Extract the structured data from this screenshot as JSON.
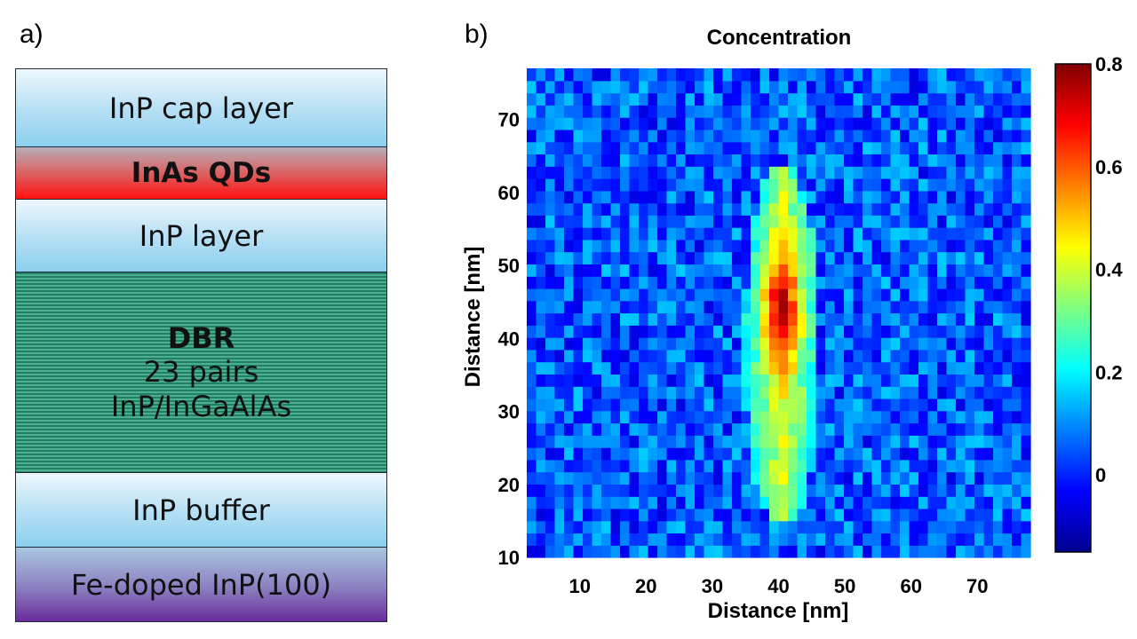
{
  "panel_a": {
    "label": "a)",
    "layers": [
      {
        "lines": [
          "InP cap layer"
        ]
      },
      {
        "lines": [
          "InAs QDs"
        ]
      },
      {
        "lines": [
          "InP layer"
        ]
      },
      {
        "title": "DBR",
        "lines": [
          "23 pairs",
          "InP/InGaAlAs"
        ]
      },
      {
        "lines": [
          "InP buffer"
        ]
      },
      {
        "lines": [
          "Fe-doped InP(100)"
        ]
      }
    ]
  },
  "panel_b": {
    "label": "b)"
  },
  "chart_data": {
    "type": "heatmap",
    "title": "Concentration",
    "xlabel": "Distance [nm]",
    "ylabel": "Distance [nm]",
    "xlim": [
      2,
      78
    ],
    "ylim": [
      10,
      77
    ],
    "xticks": [
      10,
      20,
      30,
      40,
      50,
      60,
      70
    ],
    "yticks": [
      10,
      20,
      30,
      40,
      50,
      60,
      70
    ],
    "colorbar": {
      "range": [
        -0.15,
        0.8
      ],
      "ticks": [
        0,
        0.2,
        0.4,
        0.6,
        0.8
      ],
      "colormap": "jet"
    },
    "features": [
      {
        "name": "central QD column",
        "x_center": 40.5,
        "x_halfwidth": 4.5,
        "y_range": [
          15,
          63
        ],
        "peak_y": 44,
        "peak_value": 0.75,
        "typical_value": 0.4
      },
      {
        "name": "background",
        "typical_value": 0.05
      }
    ]
  }
}
